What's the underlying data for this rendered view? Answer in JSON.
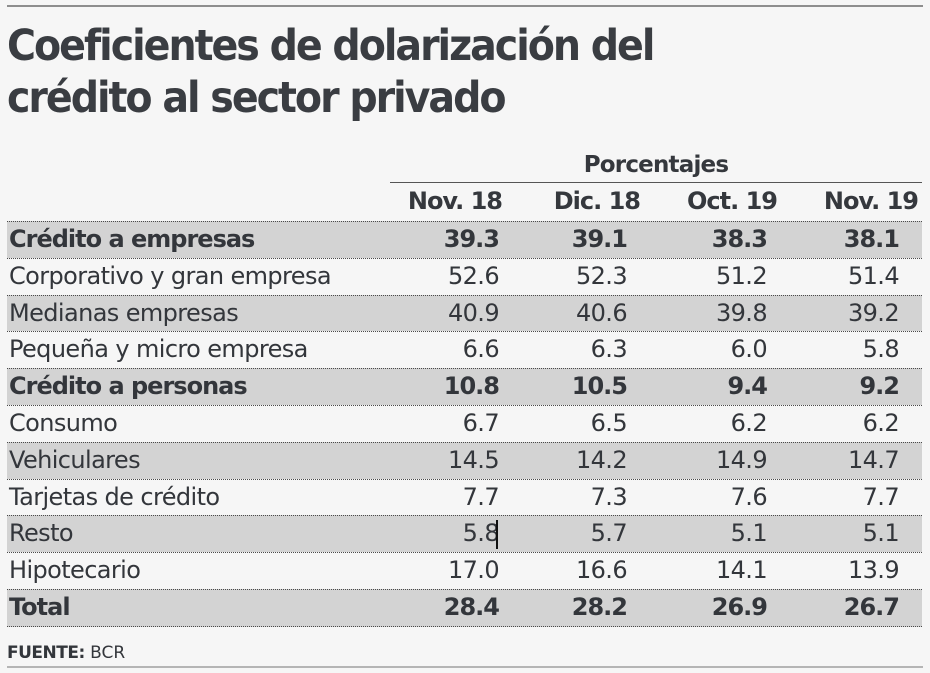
{
  "title": {
    "line1": "Coeficientes de dolarización del",
    "line2": "crédito al sector privado"
  },
  "table": {
    "group_header": "Porcentajes",
    "columns": [
      "Nov. 18",
      "Dic. 18",
      "Oct. 19",
      "Nov. 19"
    ],
    "rows": [
      {
        "label": "Crédito a empresas",
        "values": [
          "39.3",
          "39.1",
          "38.3",
          "38.1"
        ],
        "bold": true
      },
      {
        "label": "Corporativo y gran empresa",
        "values": [
          "52.6",
          "52.3",
          "51.2",
          "51.4"
        ],
        "bold": false
      },
      {
        "label": "Medianas empresas",
        "values": [
          "40.9",
          "40.6",
          "39.8",
          "39.2"
        ],
        "bold": false
      },
      {
        "label": "Pequeña y micro empresa",
        "values": [
          "6.6",
          "6.3",
          "6.0",
          "5.8"
        ],
        "bold": false
      },
      {
        "label": "Crédito a personas",
        "values": [
          "10.8",
          "10.5",
          "9.4",
          "9.2"
        ],
        "bold": true
      },
      {
        "label": "Consumo",
        "values": [
          "6.7",
          "6.5",
          "6.2",
          "6.2"
        ],
        "bold": false
      },
      {
        "label": "Vehiculares",
        "values": [
          "14.5",
          "14.2",
          "14.9",
          "14.7"
        ],
        "bold": false
      },
      {
        "label": "Tarjetas de crédito",
        "values": [
          "7.7",
          "7.3",
          "7.6",
          "7.7"
        ],
        "bold": false
      },
      {
        "label": "Resto",
        "values": [
          "5.8",
          "5.7",
          "5.1",
          "5.1"
        ],
        "bold": false
      },
      {
        "label": "Hipotecario",
        "values": [
          "17.0",
          "16.6",
          "14.1",
          "13.9"
        ],
        "bold": false
      },
      {
        "label": "Total",
        "values": [
          "28.4",
          "28.2",
          "26.9",
          "26.7"
        ],
        "bold": true
      }
    ]
  },
  "source": {
    "label": "FUENTE:",
    "value": "BCR"
  },
  "colors": {
    "text": "#2f3237",
    "shaded_row": "#d3d3d3",
    "background": "#f6f6f6"
  }
}
